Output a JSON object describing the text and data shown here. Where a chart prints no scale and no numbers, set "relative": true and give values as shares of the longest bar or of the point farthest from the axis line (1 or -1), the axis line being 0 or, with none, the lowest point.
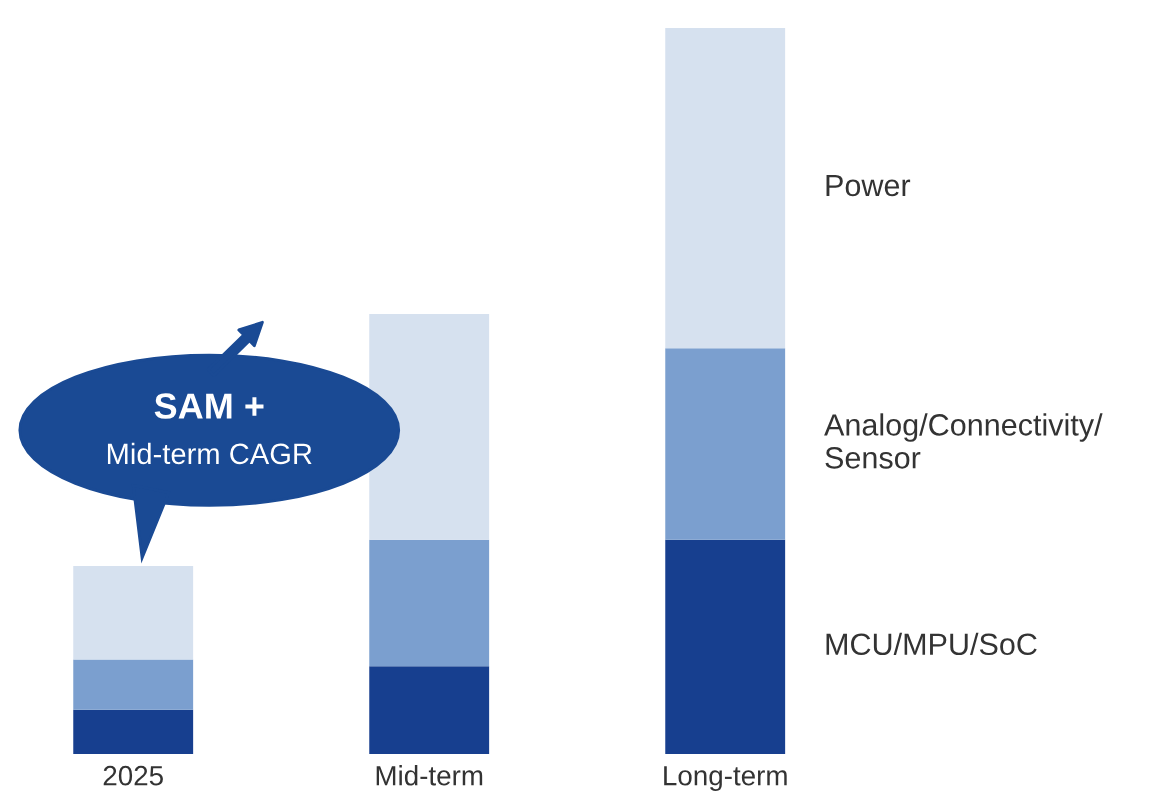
{
  "chart_data": {
    "type": "bar",
    "stacked": true,
    "relative": true,
    "categories": [
      "2025",
      "Mid-term",
      "Long-term"
    ],
    "series": [
      {
        "name": "MCU/MPU/SoC",
        "color": "#173f8f",
        "values": [
          0.061,
          0.121,
          0.295
        ]
      },
      {
        "name": "Analog/Connectivity/\nSensor",
        "color": "#7b9fcf",
        "values": [
          0.069,
          0.174,
          0.264
        ]
      },
      {
        "name": "Power",
        "color": "#d6e1ef",
        "values": [
          0.129,
          0.311,
          0.441
        ]
      }
    ],
    "annotations": [
      "SAM +\nMid-term CAGR"
    ]
  }
}
